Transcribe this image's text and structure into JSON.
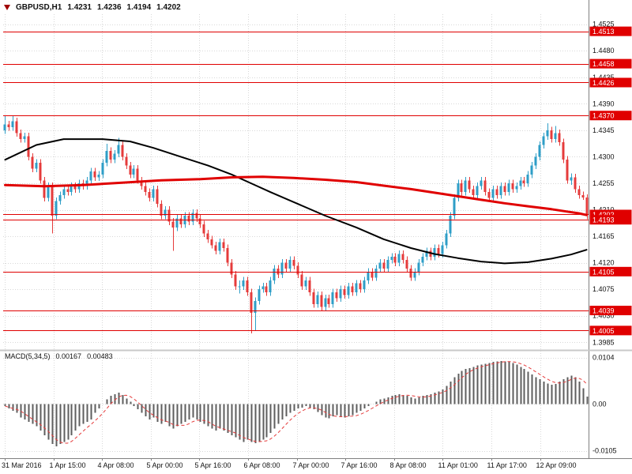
{
  "header": {
    "symbol": "GBPUSD,H1",
    "open": "1.4231",
    "high": "1.4236",
    "low": "1.4194",
    "close": "1.4202"
  },
  "macd_panel": {
    "value_main": "0.00167",
    "value_signal": "0.00483"
  },
  "colors": {
    "bull": "#2e9ec7",
    "bear": "#e53b3b",
    "level": "#e00000",
    "badge_bg": "#e00000",
    "badge_text": "#ffffff",
    "grid": "#d8d8d8",
    "border": "#808080",
    "divider": "#c8c8c8",
    "text": "#111111"
  },
  "chart_data": {
    "type": "candlestick",
    "symbol": "GBPUSD",
    "timeframe": "H1",
    "ylim": [
      1.3976,
      1.4542
    ],
    "y_ticks": {
      "labels": [
        "1.4525",
        "1.4480",
        "1.4435",
        "1.4390",
        "1.4345",
        "1.4300",
        "1.4255",
        "1.4210",
        "1.4165",
        "1.4120",
        "1.4075",
        "1.4030",
        "1.3985"
      ],
      "values": [
        1.4525,
        1.448,
        1.4435,
        1.439,
        1.4345,
        1.43,
        1.4255,
        1.421,
        1.4165,
        1.412,
        1.4075,
        1.403,
        1.3985
      ]
    },
    "x_labels": [
      "31 Mar 2016",
      "1 Apr 15:00",
      "4 Apr 08:00",
      "5 Apr 00:00",
      "5 Apr 16:00",
      "6 Apr 08:00",
      "7 Apr 00:00",
      "7 Apr 16:00",
      "8 Apr 08:00",
      "11 Apr 01:00",
      "11 Apr 17:00",
      "12 Apr 09:00"
    ],
    "levels": [
      {
        "label": "1.4513",
        "value": 1.4513
      },
      {
        "label": "1.4458",
        "value": 1.4458
      },
      {
        "label": "1.4426",
        "value": 1.4426
      },
      {
        "label": "1.4370",
        "value": 1.437
      },
      {
        "label": "1.4193",
        "value": 1.4193
      },
      {
        "label": "1.4105",
        "value": 1.4105
      },
      {
        "label": "1.4039",
        "value": 1.4039
      },
      {
        "label": "1.4005",
        "value": 1.4005
      }
    ],
    "current_price": {
      "label": "1.4202",
      "value": 1.4202
    },
    "candles": [
      [
        1.4345,
        1.437,
        1.4339,
        1.4355
      ],
      [
        1.4355,
        1.4361,
        1.4344,
        1.435
      ],
      [
        1.435,
        1.437,
        1.4344,
        1.436
      ],
      [
        1.436,
        1.4366,
        1.4334,
        1.434
      ],
      [
        1.434,
        1.4346,
        1.4324,
        1.433
      ],
      [
        1.433,
        1.4341,
        1.4324,
        1.4335
      ],
      [
        1.4335,
        1.4341,
        1.4294,
        1.43
      ],
      [
        1.43,
        1.4306,
        1.4274,
        1.428
      ],
      [
        1.428,
        1.4296,
        1.4274,
        1.429
      ],
      [
        1.429,
        1.4296,
        1.4254,
        1.426
      ],
      [
        1.426,
        1.4266,
        1.4224,
        1.423
      ],
      [
        1.423,
        1.4256,
        1.4224,
        1.425
      ],
      [
        1.425,
        1.4256,
        1.417,
        1.42
      ],
      [
        1.42,
        1.4231,
        1.4194,
        1.4225
      ],
      [
        1.4225,
        1.4241,
        1.4219,
        1.4235
      ],
      [
        1.4235,
        1.4251,
        1.4229,
        1.4245
      ],
      [
        1.4245,
        1.4251,
        1.4234,
        1.424
      ],
      [
        1.424,
        1.4256,
        1.4234,
        1.425
      ],
      [
        1.425,
        1.4256,
        1.4239,
        1.4245
      ],
      [
        1.4245,
        1.4261,
        1.4239,
        1.4255
      ],
      [
        1.4255,
        1.4261,
        1.4244,
        1.425
      ],
      [
        1.425,
        1.4266,
        1.4244,
        1.426
      ],
      [
        1.426,
        1.4281,
        1.4254,
        1.4275
      ],
      [
        1.4275,
        1.4281,
        1.4259,
        1.4265
      ],
      [
        1.4265,
        1.4276,
        1.4259,
        1.427
      ],
      [
        1.427,
        1.4296,
        1.4264,
        1.429
      ],
      [
        1.429,
        1.4322,
        1.4284,
        1.431
      ],
      [
        1.431,
        1.4316,
        1.4289,
        1.4295
      ],
      [
        1.4295,
        1.4311,
        1.4289,
        1.4305
      ],
      [
        1.4305,
        1.4332,
        1.4299,
        1.432
      ],
      [
        1.432,
        1.4326,
        1.4294,
        1.43
      ],
      [
        1.43,
        1.4306,
        1.4279,
        1.4285
      ],
      [
        1.4285,
        1.4291,
        1.4264,
        1.427
      ],
      [
        1.427,
        1.4286,
        1.4264,
        1.428
      ],
      [
        1.428,
        1.4286,
        1.4254,
        1.426
      ],
      [
        1.426,
        1.4266,
        1.4244,
        1.425
      ],
      [
        1.425,
        1.4256,
        1.4234,
        1.424
      ],
      [
        1.424,
        1.4246,
        1.4224,
        1.423
      ],
      [
        1.423,
        1.4251,
        1.4224,
        1.4245
      ],
      [
        1.4245,
        1.4251,
        1.4214,
        1.422
      ],
      [
        1.422,
        1.4226,
        1.4194,
        1.42
      ],
      [
        1.42,
        1.4216,
        1.4194,
        1.421
      ],
      [
        1.421,
        1.4216,
        1.4184,
        1.419
      ],
      [
        1.419,
        1.4196,
        1.414,
        1.418
      ],
      [
        1.418,
        1.4201,
        1.4174,
        1.4195
      ],
      [
        1.4195,
        1.4201,
        1.4179,
        1.4185
      ],
      [
        1.4185,
        1.4206,
        1.4179,
        1.42
      ],
      [
        1.42,
        1.4206,
        1.4184,
        1.419
      ],
      [
        1.419,
        1.4211,
        1.4184,
        1.4205
      ],
      [
        1.4205,
        1.4211,
        1.4189,
        1.4195
      ],
      [
        1.4195,
        1.4201,
        1.4179,
        1.4185
      ],
      [
        1.4185,
        1.4191,
        1.4164,
        1.417
      ],
      [
        1.417,
        1.4176,
        1.4154,
        1.416
      ],
      [
        1.416,
        1.4166,
        1.4144,
        1.415
      ],
      [
        1.415,
        1.4156,
        1.4134,
        1.414
      ],
      [
        1.414,
        1.4161,
        1.4134,
        1.4155
      ],
      [
        1.4155,
        1.4161,
        1.4139,
        1.4145
      ],
      [
        1.4145,
        1.4151,
        1.4114,
        1.412
      ],
      [
        1.412,
        1.4126,
        1.4094,
        1.41
      ],
      [
        1.41,
        1.4106,
        1.4074,
        1.408
      ],
      [
        1.408,
        1.409,
        1.4068,
        1.408
      ],
      [
        1.408,
        1.4096,
        1.4074,
        1.409
      ],
      [
        1.409,
        1.4096,
        1.4064,
        1.407
      ],
      [
        1.407,
        1.4076,
        1.4,
        1.4035
      ],
      [
        1.4035,
        1.4061,
        1.4005,
        1.4055
      ],
      [
        1.4055,
        1.4081,
        1.4049,
        1.4075
      ],
      [
        1.4075,
        1.4086,
        1.4069,
        1.408
      ],
      [
        1.408,
        1.4086,
        1.4064,
        1.407
      ],
      [
        1.407,
        1.4096,
        1.4064,
        1.409
      ],
      [
        1.409,
        1.4116,
        1.4084,
        1.411
      ],
      [
        1.411,
        1.4116,
        1.4094,
        1.41
      ],
      [
        1.41,
        1.4126,
        1.4094,
        1.412
      ],
      [
        1.412,
        1.4126,
        1.4104,
        1.411
      ],
      [
        1.411,
        1.4131,
        1.4104,
        1.4125
      ],
      [
        1.4125,
        1.4131,
        1.4109,
        1.4115
      ],
      [
        1.4115,
        1.4121,
        1.4094,
        1.41
      ],
      [
        1.41,
        1.4106,
        1.4074,
        1.408
      ],
      [
        1.408,
        1.4096,
        1.4074,
        1.409
      ],
      [
        1.409,
        1.4096,
        1.4064,
        1.407
      ],
      [
        1.407,
        1.4076,
        1.4044,
        1.405
      ],
      [
        1.405,
        1.4071,
        1.4044,
        1.4065
      ],
      [
        1.4065,
        1.4071,
        1.4039,
        1.4045
      ],
      [
        1.4045,
        1.4066,
        1.4039,
        1.406
      ],
      [
        1.406,
        1.4066,
        1.4044,
        1.405
      ],
      [
        1.405,
        1.4076,
        1.4044,
        1.407
      ],
      [
        1.407,
        1.4076,
        1.4054,
        1.406
      ],
      [
        1.406,
        1.4081,
        1.4054,
        1.4075
      ],
      [
        1.4075,
        1.4081,
        1.4059,
        1.4065
      ],
      [
        1.4065,
        1.4086,
        1.4059,
        1.408
      ],
      [
        1.408,
        1.4086,
        1.4064,
        1.407
      ],
      [
        1.407,
        1.4091,
        1.4064,
        1.4085
      ],
      [
        1.4085,
        1.4091,
        1.4069,
        1.4075
      ],
      [
        1.4075,
        1.4096,
        1.4069,
        1.409
      ],
      [
        1.409,
        1.4111,
        1.4084,
        1.4105
      ],
      [
        1.4105,
        1.4111,
        1.4089,
        1.4095
      ],
      [
        1.4095,
        1.4116,
        1.4089,
        1.411
      ],
      [
        1.411,
        1.4126,
        1.4104,
        1.412
      ],
      [
        1.412,
        1.4126,
        1.4104,
        1.411
      ],
      [
        1.411,
        1.4131,
        1.4104,
        1.4125
      ],
      [
        1.4125,
        1.4136,
        1.4119,
        1.413
      ],
      [
        1.413,
        1.4136,
        1.4114,
        1.412
      ],
      [
        1.412,
        1.4141,
        1.4114,
        1.4135
      ],
      [
        1.4135,
        1.4141,
        1.4119,
        1.4125
      ],
      [
        1.4125,
        1.4131,
        1.4104,
        1.411
      ],
      [
        1.411,
        1.4116,
        1.4089,
        1.4095
      ],
      [
        1.4095,
        1.4111,
        1.4089,
        1.4105
      ],
      [
        1.4105,
        1.4126,
        1.4099,
        1.412
      ],
      [
        1.412,
        1.4136,
        1.4114,
        1.413
      ],
      [
        1.413,
        1.4146,
        1.4124,
        1.414
      ],
      [
        1.414,
        1.4146,
        1.4124,
        1.413
      ],
      [
        1.413,
        1.4151,
        1.4124,
        1.4145
      ],
      [
        1.4145,
        1.4151,
        1.4129,
        1.4135
      ],
      [
        1.4135,
        1.4156,
        1.4129,
        1.415
      ],
      [
        1.415,
        1.4176,
        1.4144,
        1.417
      ],
      [
        1.417,
        1.4206,
        1.4164,
        1.42
      ],
      [
        1.42,
        1.4236,
        1.4194,
        1.423
      ],
      [
        1.423,
        1.4261,
        1.4224,
        1.4255
      ],
      [
        1.4255,
        1.4261,
        1.4234,
        1.424
      ],
      [
        1.424,
        1.4266,
        1.4234,
        1.426
      ],
      [
        1.426,
        1.4266,
        1.4239,
        1.4245
      ],
      [
        1.4245,
        1.4251,
        1.4229,
        1.4235
      ],
      [
        1.4235,
        1.4256,
        1.4229,
        1.425
      ],
      [
        1.425,
        1.4266,
        1.4244,
        1.426
      ],
      [
        1.426,
        1.4266,
        1.4234,
        1.424
      ],
      [
        1.424,
        1.4246,
        1.4224,
        1.423
      ],
      [
        1.423,
        1.4251,
        1.4224,
        1.4245
      ],
      [
        1.4245,
        1.4251,
        1.4229,
        1.4235
      ],
      [
        1.4235,
        1.4256,
        1.4229,
        1.425
      ],
      [
        1.425,
        1.4256,
        1.4234,
        1.424
      ],
      [
        1.424,
        1.4261,
        1.4234,
        1.4255
      ],
      [
        1.4255,
        1.4261,
        1.4239,
        1.4245
      ],
      [
        1.4245,
        1.4256,
        1.4239,
        1.425
      ],
      [
        1.425,
        1.4266,
        1.4244,
        1.426
      ],
      [
        1.426,
        1.4266,
        1.4249,
        1.4255
      ],
      [
        1.4255,
        1.4276,
        1.4249,
        1.427
      ],
      [
        1.427,
        1.4291,
        1.4264,
        1.4285
      ],
      [
        1.4285,
        1.4306,
        1.4279,
        1.43
      ],
      [
        1.43,
        1.4326,
        1.4294,
        1.432
      ],
      [
        1.432,
        1.4341,
        1.4314,
        1.4335
      ],
      [
        1.4335,
        1.4357,
        1.4329,
        1.4345
      ],
      [
        1.4345,
        1.4351,
        1.4324,
        1.433
      ],
      [
        1.433,
        1.4352,
        1.4324,
        1.434
      ],
      [
        1.434,
        1.4346,
        1.4319,
        1.4325
      ],
      [
        1.4325,
        1.4331,
        1.4289,
        1.4295
      ],
      [
        1.4295,
        1.4301,
        1.4254,
        1.426
      ],
      [
        1.426,
        1.4272,
        1.4252,
        1.4265
      ],
      [
        1.4265,
        1.4271,
        1.4239,
        1.4245
      ],
      [
        1.4245,
        1.4251,
        1.4229,
        1.4235
      ],
      [
        1.4235,
        1.4241,
        1.4227,
        1.4231
      ],
      [
        1.4231,
        1.4236,
        1.4194,
        1.4202
      ]
    ],
    "overlays": [
      {
        "name": "ma-black-line",
        "color": "#000000",
        "width": 2,
        "points": [
          [
            0,
            1.4295
          ],
          [
            8,
            1.432
          ],
          [
            15,
            1.433
          ],
          [
            25,
            1.433
          ],
          [
            32,
            1.4326
          ],
          [
            38,
            1.4315
          ],
          [
            45,
            1.43
          ],
          [
            52,
            1.4285
          ],
          [
            58,
            1.427
          ],
          [
            63,
            1.4255
          ],
          [
            68,
            1.424
          ],
          [
            75,
            1.422
          ],
          [
            82,
            1.42
          ],
          [
            90,
            1.418
          ],
          [
            97,
            1.416
          ],
          [
            104,
            1.4145
          ],
          [
            110,
            1.4135
          ],
          [
            116,
            1.4128
          ],
          [
            122,
            1.4122
          ],
          [
            128,
            1.4119
          ],
          [
            134,
            1.4121
          ],
          [
            140,
            1.4127
          ],
          [
            145,
            1.4134
          ],
          [
            149,
            1.4142
          ]
        ]
      },
      {
        "name": "ma-red-line",
        "color": "#e00000",
        "width": 3,
        "points": [
          [
            0,
            1.4252
          ],
          [
            10,
            1.425
          ],
          [
            20,
            1.4252
          ],
          [
            30,
            1.4256
          ],
          [
            40,
            1.426
          ],
          [
            50,
            1.4262
          ],
          [
            58,
            1.4265
          ],
          [
            66,
            1.4266
          ],
          [
            74,
            1.4264
          ],
          [
            82,
            1.4261
          ],
          [
            90,
            1.4257
          ],
          [
            97,
            1.4251
          ],
          [
            104,
            1.4245
          ],
          [
            110,
            1.4239
          ],
          [
            116,
            1.4233
          ],
          [
            122,
            1.4227
          ],
          [
            128,
            1.4221
          ],
          [
            134,
            1.4216
          ],
          [
            140,
            1.4211
          ],
          [
            144,
            1.4207
          ],
          [
            147,
            1.4204
          ],
          [
            149,
            1.4201
          ]
        ]
      }
    ],
    "indicator": {
      "type": "macd",
      "label": "MACD(5,34,5)",
      "fast_period": 5,
      "slow_period": 34,
      "signal_period": 5,
      "ylim": [
        -0.0118,
        0.0112
      ],
      "axis": {
        "labels": [
          "0.0104",
          "0.00",
          "-0.0105"
        ],
        "values": [
          0.0104,
          0,
          -0.0105
        ]
      },
      "histogram_color": "#5e5e5e",
      "signal_color": "#e53b3b",
      "signal_style": "dashed",
      "values": [
        -0.0005,
        -0.001,
        -0.0015,
        -0.002,
        -0.003,
        -0.0035,
        -0.004,
        -0.0045,
        -0.005,
        -0.006,
        -0.007,
        -0.008,
        -0.009,
        -0.0095,
        -0.009,
        -0.0085,
        -0.008,
        -0.007,
        -0.006,
        -0.005,
        -0.0045,
        -0.004,
        -0.0035,
        -0.002,
        -0.001,
        0,
        0.001,
        0.0018,
        0.0022,
        0.0025,
        0.002,
        0.0012,
        0.0005,
        -0.0005,
        -0.0012,
        -0.002,
        -0.0028,
        -0.0035,
        -0.003,
        -0.004,
        -0.0045,
        -0.004,
        -0.005,
        -0.0055,
        -0.005,
        -0.0045,
        -0.004,
        -0.0035,
        -0.003,
        -0.0035,
        -0.004,
        -0.0045,
        -0.005,
        -0.0055,
        -0.006,
        -0.0055,
        -0.006,
        -0.0065,
        -0.007,
        -0.0075,
        -0.008,
        -0.0085,
        -0.008,
        -0.0085,
        -0.0088,
        -0.0085,
        -0.008,
        -0.0075,
        -0.0065,
        -0.0055,
        -0.0045,
        -0.0035,
        -0.0028,
        -0.002,
        -0.0015,
        -0.001,
        -0.0008,
        -0.0005,
        -0.0008,
        -0.0012,
        -0.0018,
        -0.0025,
        -0.003,
        -0.0032,
        -0.0028,
        -0.0025,
        -0.0028,
        -0.003,
        -0.0028,
        -0.0025,
        -0.002,
        -0.0015,
        -0.001,
        -0.0005,
        0,
        0.0005,
        0.001,
        0.0012,
        0.0015,
        0.0018,
        0.002,
        0.0022,
        0.002,
        0.0018,
        0.0015,
        0.0012,
        0.0015,
        0.0018,
        0.002,
        0.0022,
        0.0025,
        0.0028,
        0.0032,
        0.004,
        0.005,
        0.006,
        0.0068,
        0.0074,
        0.0078,
        0.008,
        0.0083,
        0.0086,
        0.0088,
        0.009,
        0.0092,
        0.0094,
        0.0095,
        0.0096,
        0.0095,
        0.0094,
        0.0092,
        0.0088,
        0.0083,
        0.0078,
        0.0072,
        0.0066,
        0.006,
        0.0055,
        0.005,
        0.0046,
        0.0043,
        0.0045,
        0.005,
        0.0055,
        0.006,
        0.0063,
        0.006,
        0.005,
        0.0035,
        0.00167
      ]
    }
  }
}
